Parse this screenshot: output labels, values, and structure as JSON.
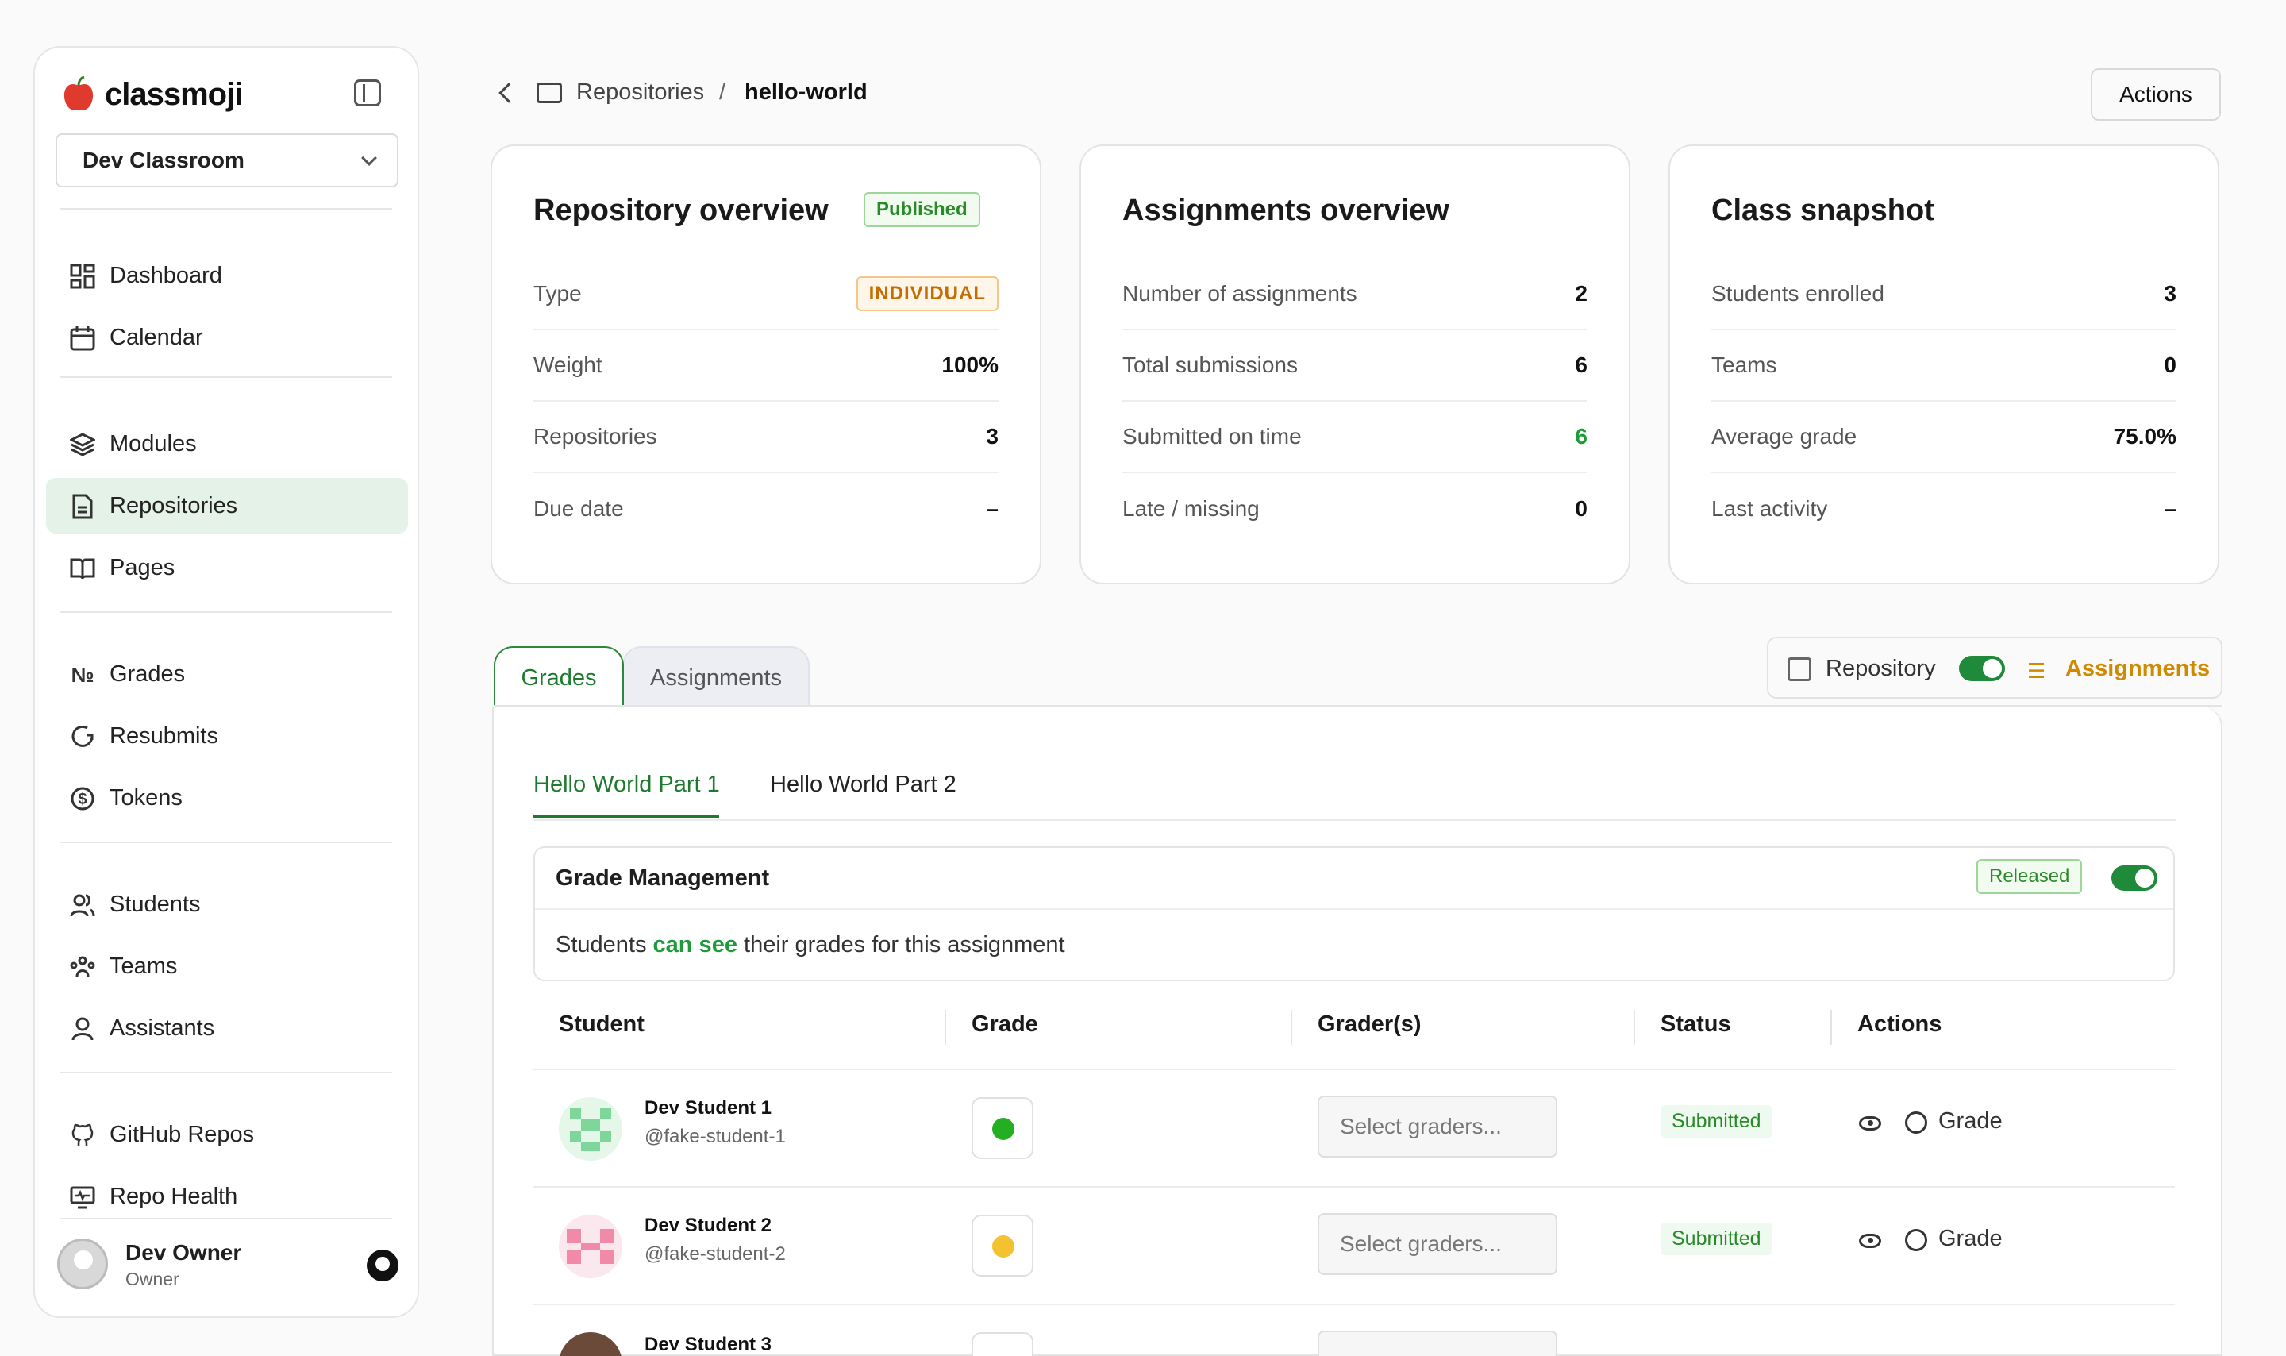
{
  "brand": {
    "name": "classmoji"
  },
  "sidebar": {
    "classroom": "Dev Classroom",
    "items": [
      {
        "label": "Dashboard",
        "icon": "dashboard-icon"
      },
      {
        "label": "Calendar",
        "icon": "calendar-icon"
      },
      {
        "label": "Modules",
        "icon": "layers-icon"
      },
      {
        "label": "Repositories",
        "icon": "file-icon"
      },
      {
        "label": "Pages",
        "icon": "book-icon"
      },
      {
        "label": "Grades",
        "icon": "number-icon"
      },
      {
        "label": "Resubmits",
        "icon": "refresh-icon"
      },
      {
        "label": "Tokens",
        "icon": "dollar-icon"
      },
      {
        "label": "Students",
        "icon": "users-icon"
      },
      {
        "label": "Teams",
        "icon": "team-icon"
      },
      {
        "label": "Assistants",
        "icon": "user-icon"
      },
      {
        "label": "GitHub Repos",
        "icon": "github-icon"
      },
      {
        "label": "Repo Health",
        "icon": "monitor-icon"
      }
    ],
    "user": {
      "name": "Dev Owner",
      "role": "Owner"
    }
  },
  "header": {
    "breadcrumb_parent": "Repositories",
    "breadcrumb_sep": "/",
    "breadcrumb_current": "hello-world",
    "actions_label": "Actions"
  },
  "repo_overview": {
    "title": "Repository overview",
    "badge": "Published",
    "rows": [
      {
        "label": "Type",
        "value": "INDIVIDUAL"
      },
      {
        "label": "Weight",
        "value": "100%"
      },
      {
        "label": "Repositories",
        "value": "3"
      },
      {
        "label": "Due date",
        "value": "–"
      }
    ]
  },
  "assign_overview": {
    "title": "Assignments overview",
    "rows": [
      {
        "label": "Number of assignments",
        "value": "2"
      },
      {
        "label": "Total submissions",
        "value": "6"
      },
      {
        "label": "Submitted on time",
        "value": "6"
      },
      {
        "label": "Late / missing",
        "value": "0"
      }
    ]
  },
  "class_snapshot": {
    "title": "Class snapshot",
    "rows": [
      {
        "label": "Students enrolled",
        "value": "3"
      },
      {
        "label": "Teams",
        "value": "0"
      },
      {
        "label": "Average grade",
        "value": "75.0%"
      },
      {
        "label": "Last activity",
        "value": "–"
      }
    ]
  },
  "tabs": {
    "grades": "Grades",
    "assignments": "Assignments"
  },
  "view_toggle": {
    "repository": "Repository",
    "assignments": "Assignments"
  },
  "subtabs": {
    "part1": "Hello World Part 1",
    "part2": "Hello World Part 2"
  },
  "grade_management": {
    "title": "Grade Management",
    "badge": "Released",
    "desc_pre": "Students ",
    "desc_em": "can see",
    "desc_post": " their grades for this assignment"
  },
  "table": {
    "headers": [
      "Student",
      "Grade",
      "Grader(s)",
      "Status",
      "Actions"
    ],
    "rows": [
      {
        "name": "Dev Student 1",
        "handle": "@fake-student-1",
        "grader_placeholder": "Select graders...",
        "status": "Submitted",
        "action": "Grade",
        "grade_color": "#22b022"
      },
      {
        "name": "Dev Student 2",
        "handle": "@fake-student-2",
        "grader_placeholder": "Select graders...",
        "status": "Submitted",
        "action": "Grade",
        "grade_color": "#f2c230"
      },
      {
        "name": "Dev Student 3"
      }
    ]
  },
  "colors": {
    "accent": "#1e7a2e",
    "active_bg": "#e5f2e7",
    "warning": "#d08a00"
  }
}
